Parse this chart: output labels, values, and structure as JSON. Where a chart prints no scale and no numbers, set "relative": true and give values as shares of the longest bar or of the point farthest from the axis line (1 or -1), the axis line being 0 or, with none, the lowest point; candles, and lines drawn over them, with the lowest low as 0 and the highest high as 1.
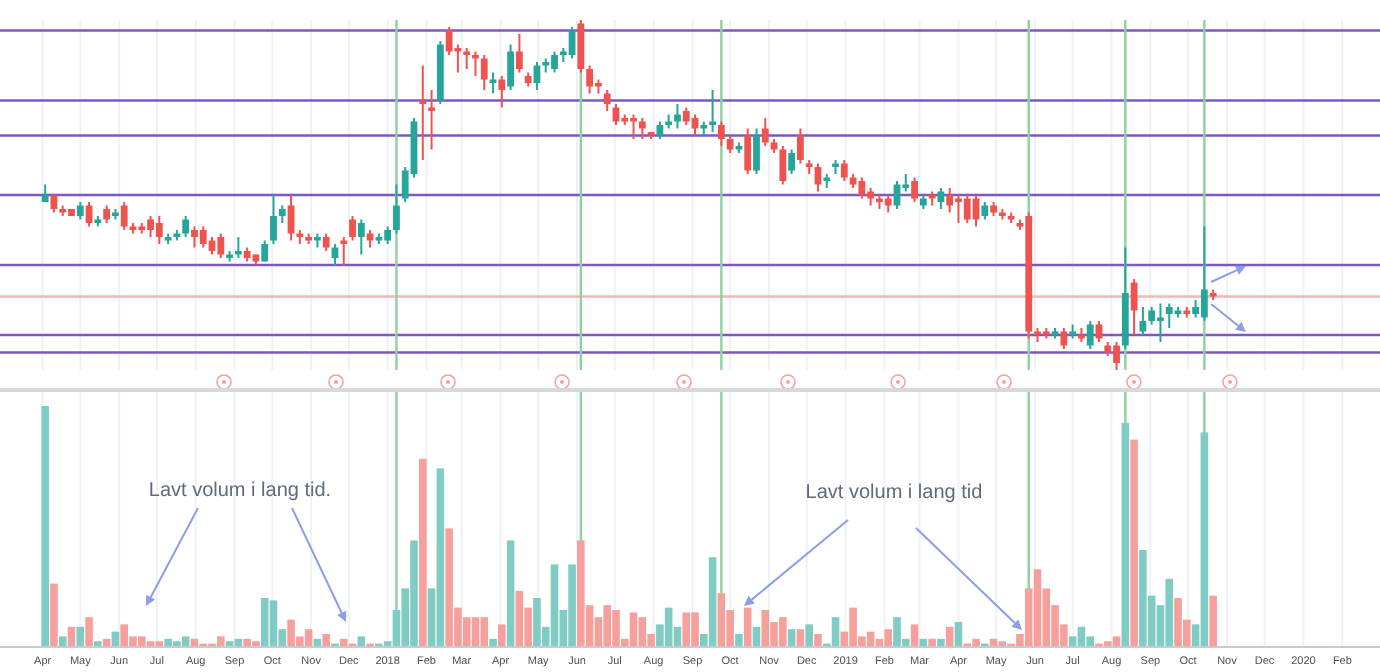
{
  "chart_data": [
    {
      "type": "candlestick",
      "relative": true,
      "tick_labels": false,
      "grid": "x",
      "x": [
        "2017-04-03",
        "2017-04-10",
        "2017-04-17",
        "2017-04-24",
        "2017-05-01",
        "2017-05-08",
        "2017-05-15",
        "2017-05-22",
        "2017-05-29",
        "2017-06-05",
        "2017-06-12",
        "2017-06-19",
        "2017-06-26",
        "2017-07-03",
        "2017-07-10",
        "2017-07-17",
        "2017-07-24",
        "2017-07-31",
        "2017-08-07",
        "2017-08-14",
        "2017-08-21",
        "2017-08-28",
        "2017-09-04",
        "2017-09-11",
        "2017-09-18",
        "2017-09-25",
        "2017-10-02",
        "2017-10-09",
        "2017-10-16",
        "2017-10-23",
        "2017-10-30",
        "2017-11-06",
        "2017-11-13",
        "2017-11-20",
        "2017-11-27",
        "2017-12-04",
        "2017-12-11",
        "2017-12-18",
        "2017-12-25",
        "2018-01-01",
        "2018-01-08",
        "2018-01-15",
        "2018-01-22",
        "2018-01-29",
        "2018-02-05",
        "2018-02-12",
        "2018-02-19",
        "2018-02-26",
        "2018-03-05",
        "2018-03-12",
        "2018-03-19",
        "2018-03-26",
        "2018-04-02",
        "2018-04-09",
        "2018-04-16",
        "2018-04-23",
        "2018-04-30",
        "2018-05-07",
        "2018-05-14",
        "2018-05-21",
        "2018-05-28",
        "2018-06-04",
        "2018-06-11",
        "2018-06-18",
        "2018-06-25",
        "2018-07-02",
        "2018-07-09",
        "2018-07-16",
        "2018-07-23",
        "2018-07-30",
        "2018-08-06",
        "2018-08-13",
        "2018-08-20",
        "2018-08-27",
        "2018-09-03",
        "2018-09-10",
        "2018-09-17",
        "2018-09-24",
        "2018-10-01",
        "2018-10-08",
        "2018-10-15",
        "2018-10-22",
        "2018-10-29",
        "2018-11-05",
        "2018-11-12",
        "2018-11-19",
        "2018-11-26",
        "2018-12-03",
        "2018-12-10",
        "2018-12-17",
        "2018-12-24",
        "2018-12-31",
        "2019-01-07",
        "2019-01-14",
        "2019-01-21",
        "2019-01-28",
        "2019-02-04",
        "2019-02-11",
        "2019-02-18",
        "2019-02-25",
        "2019-03-04",
        "2019-03-11",
        "2019-03-18",
        "2019-03-25",
        "2019-04-01",
        "2019-04-08",
        "2019-04-15",
        "2019-04-22",
        "2019-04-29",
        "2019-05-06",
        "2019-05-13",
        "2019-05-20",
        "2019-05-27",
        "2019-06-03",
        "2019-06-10",
        "2019-06-17",
        "2019-06-24",
        "2019-07-01",
        "2019-07-08",
        "2019-07-15",
        "2019-07-22",
        "2019-07-29",
        "2019-08-05",
        "2019-08-12",
        "2019-08-19",
        "2019-08-26",
        "2019-09-02",
        "2019-09-09",
        "2019-09-16",
        "2019-09-23",
        "2019-09-30",
        "2019-10-07",
        "2019-10-14",
        "2019-10-21"
      ],
      "ohlc": [
        [
          0.48,
          0.53,
          0.48,
          0.5
        ],
        [
          0.5,
          0.5,
          0.45,
          0.46
        ],
        [
          0.46,
          0.47,
          0.44,
          0.45
        ],
        [
          0.46,
          0.46,
          0.44,
          0.44
        ],
        [
          0.44,
          0.48,
          0.43,
          0.47
        ],
        [
          0.47,
          0.48,
          0.41,
          0.42
        ],
        [
          0.42,
          0.44,
          0.41,
          0.43
        ],
        [
          0.46,
          0.47,
          0.42,
          0.43
        ],
        [
          0.44,
          0.46,
          0.43,
          0.45
        ],
        [
          0.47,
          0.48,
          0.4,
          0.41
        ],
        [
          0.41,
          0.42,
          0.39,
          0.4
        ],
        [
          0.41,
          0.42,
          0.39,
          0.4
        ],
        [
          0.43,
          0.44,
          0.38,
          0.4
        ],
        [
          0.42,
          0.44,
          0.36,
          0.38
        ],
        [
          0.37,
          0.39,
          0.36,
          0.38
        ],
        [
          0.38,
          0.4,
          0.37,
          0.39
        ],
        [
          0.39,
          0.44,
          0.38,
          0.43
        ],
        [
          0.4,
          0.41,
          0.35,
          0.38
        ],
        [
          0.4,
          0.41,
          0.35,
          0.36
        ],
        [
          0.37,
          0.38,
          0.33,
          0.34
        ],
        [
          0.38,
          0.39,
          0.32,
          0.33
        ],
        [
          0.32,
          0.34,
          0.31,
          0.33
        ],
        [
          0.33,
          0.38,
          0.32,
          0.34
        ],
        [
          0.34,
          0.35,
          0.31,
          0.32
        ],
        [
          0.33,
          0.33,
          0.3,
          0.31
        ],
        [
          0.31,
          0.37,
          0.31,
          0.36
        ],
        [
          0.37,
          0.5,
          0.36,
          0.44
        ],
        [
          0.44,
          0.47,
          0.42,
          0.46
        ],
        [
          0.47,
          0.5,
          0.37,
          0.39
        ],
        [
          0.39,
          0.4,
          0.36,
          0.38
        ],
        [
          0.38,
          0.39,
          0.36,
          0.37
        ],
        [
          0.37,
          0.39,
          0.35,
          0.38
        ],
        [
          0.38,
          0.39,
          0.34,
          0.35
        ],
        [
          0.32,
          0.36,
          0.3,
          0.35
        ],
        [
          0.37,
          0.38,
          0.3,
          0.36
        ],
        [
          0.43,
          0.44,
          0.37,
          0.38
        ],
        [
          0.38,
          0.43,
          0.33,
          0.42
        ],
        [
          0.39,
          0.4,
          0.35,
          0.37
        ],
        [
          0.37,
          0.39,
          0.36,
          0.38
        ],
        [
          0.37,
          0.41,
          0.36,
          0.4
        ],
        [
          0.4,
          0.53,
          0.39,
          0.47
        ],
        [
          0.49,
          0.58,
          0.48,
          0.57
        ],
        [
          0.56,
          0.72,
          0.55,
          0.71
        ],
        [
          0.77,
          0.87,
          0.6,
          0.76
        ],
        [
          0.75,
          0.8,
          0.63,
          0.74
        ],
        [
          0.77,
          0.94,
          0.76,
          0.93
        ],
        [
          0.97,
          0.98,
          0.9,
          0.91
        ],
        [
          0.92,
          0.93,
          0.85,
          0.91
        ],
        [
          0.91,
          0.92,
          0.86,
          0.9
        ],
        [
          0.9,
          0.91,
          0.84,
          0.89
        ],
        [
          0.89,
          0.9,
          0.8,
          0.83
        ],
        [
          0.82,
          0.85,
          0.79,
          0.83
        ],
        [
          0.83,
          0.84,
          0.75,
          0.8
        ],
        [
          0.81,
          0.93,
          0.8,
          0.91
        ],
        [
          0.91,
          0.96,
          0.85,
          0.86
        ],
        [
          0.84,
          0.85,
          0.81,
          0.82
        ],
        [
          0.82,
          0.88,
          0.8,
          0.87
        ],
        [
          0.87,
          0.89,
          0.85,
          0.88
        ],
        [
          0.86,
          0.91,
          0.85,
          0.9
        ],
        [
          0.9,
          0.92,
          0.88,
          0.91
        ],
        [
          0.9,
          0.98,
          0.89,
          0.97
        ],
        [
          0.99,
          1,
          0.85,
          0.86
        ],
        [
          0.86,
          0.87,
          0.79,
          0.81
        ],
        [
          0.82,
          0.83,
          0.79,
          0.81
        ],
        [
          0.79,
          0.8,
          0.74,
          0.76
        ],
        [
          0.75,
          0.76,
          0.7,
          0.71
        ],
        [
          0.72,
          0.73,
          0.7,
          0.71
        ],
        [
          0.72,
          0.73,
          0.66,
          0.71
        ],
        [
          0.71,
          0.72,
          0.66,
          0.69
        ],
        [
          0.68,
          0.68,
          0.66,
          0.67
        ],
        [
          0.67,
          0.71,
          0.66,
          0.7
        ],
        [
          0.7,
          0.73,
          0.69,
          0.71
        ],
        [
          0.71,
          0.76,
          0.69,
          0.73
        ],
        [
          0.74,
          0.75,
          0.7,
          0.71
        ],
        [
          0.72,
          0.73,
          0.67,
          0.69
        ],
        [
          0.69,
          0.71,
          0.67,
          0.7
        ],
        [
          0.7,
          0.8,
          0.68,
          0.71
        ],
        [
          0.7,
          0.71,
          0.64,
          0.66
        ],
        [
          0.66,
          0.67,
          0.62,
          0.63
        ],
        [
          0.63,
          0.65,
          0.62,
          0.64
        ],
        [
          0.67,
          0.69,
          0.56,
          0.57
        ],
        [
          0.57,
          0.69,
          0.56,
          0.67
        ],
        [
          0.69,
          0.72,
          0.64,
          0.65
        ],
        [
          0.65,
          0.66,
          0.62,
          0.63
        ],
        [
          0.63,
          0.64,
          0.53,
          0.54
        ],
        [
          0.57,
          0.63,
          0.56,
          0.62
        ],
        [
          0.67,
          0.69,
          0.59,
          0.6
        ],
        [
          0.59,
          0.6,
          0.56,
          0.58
        ],
        [
          0.58,
          0.59,
          0.51,
          0.53
        ],
        [
          0.54,
          0.56,
          0.52,
          0.55
        ],
        [
          0.58,
          0.6,
          0.56,
          0.59
        ],
        [
          0.59,
          0.6,
          0.54,
          0.55
        ],
        [
          0.55,
          0.56,
          0.52,
          0.53
        ],
        [
          0.54,
          0.55,
          0.49,
          0.5
        ],
        [
          0.51,
          0.52,
          0.47,
          0.49
        ],
        [
          0.49,
          0.5,
          0.46,
          0.48
        ],
        [
          0.49,
          0.5,
          0.45,
          0.47
        ],
        [
          0.47,
          0.54,
          0.46,
          0.53
        ],
        [
          0.52,
          0.56,
          0.51,
          0.53
        ],
        [
          0.54,
          0.55,
          0.48,
          0.49
        ],
        [
          0.47,
          0.5,
          0.46,
          0.49
        ],
        [
          0.5,
          0.51,
          0.47,
          0.49
        ],
        [
          0.48,
          0.52,
          0.46,
          0.51
        ],
        [
          0.5,
          0.52,
          0.45,
          0.47
        ],
        [
          0.49,
          0.5,
          0.42,
          0.48
        ],
        [
          0.49,
          0.5,
          0.42,
          0.43
        ],
        [
          0.49,
          0.5,
          0.41,
          0.43
        ],
        [
          0.44,
          0.48,
          0.43,
          0.47
        ],
        [
          0.47,
          0.48,
          0.44,
          0.45
        ],
        [
          0.45,
          0.46,
          0.43,
          0.44
        ],
        [
          0.44,
          0.45,
          0.42,
          0.43
        ],
        [
          0.42,
          0.43,
          0.4,
          0.41
        ],
        [
          0.44,
          0.45,
          0.09,
          0.11
        ],
        [
          0.11,
          0.12,
          0.08,
          0.1
        ],
        [
          0.11,
          0.12,
          0.09,
          0.1
        ],
        [
          0.1,
          0.12,
          0.09,
          0.11
        ],
        [
          0.11,
          0.12,
          0.06,
          0.07
        ],
        [
          0.1,
          0.13,
          0.09,
          0.11
        ],
        [
          0.1,
          0.12,
          0.08,
          0.09
        ],
        [
          0.07,
          0.14,
          0.06,
          0.13
        ],
        [
          0.13,
          0.14,
          0.08,
          0.09
        ],
        [
          0.07,
          0.08,
          0.04,
          0.05
        ],
        [
          0.07,
          0.08,
          0,
          0.02
        ],
        [
          0.07,
          0.35,
          0.06,
          0.22
        ],
        [
          0.25,
          0.26,
          0.1,
          0.17
        ],
        [
          0.11,
          0.18,
          0.1,
          0.14
        ],
        [
          0.14,
          0.18,
          0.13,
          0.17
        ],
        [
          0.14,
          0.19,
          0.08,
          0.15
        ],
        [
          0.16,
          0.19,
          0.12,
          0.18
        ],
        [
          0.16,
          0.18,
          0.15,
          0.17
        ],
        [
          0.17,
          0.18,
          0.15,
          0.16
        ],
        [
          0.16,
          0.2,
          0.15,
          0.18
        ],
        [
          0.15,
          0.41,
          0.14,
          0.23
        ],
        [
          0.22,
          0.23,
          0.2,
          0.21
        ]
      ],
      "colors": [
        "#26a69a",
        "#ef5350",
        "#ef5350",
        "#ef5350",
        "#26a69a",
        "#ef5350",
        "#26a69a",
        "#ef5350",
        "#26a69a",
        "#ef5350",
        "#ef5350",
        "#ef5350",
        "#ef5350",
        "#ef5350",
        "#26a69a",
        "#26a69a",
        "#26a69a",
        "#ef5350",
        "#ef5350",
        "#ef5350",
        "#ef5350",
        "#26a69a",
        "#26a69a",
        "#ef5350",
        "#ef5350",
        "#26a69a",
        "#26a69a",
        "#26a69a",
        "#ef5350",
        "#ef5350",
        "#ef5350",
        "#26a69a",
        "#ef5350",
        "#26a69a",
        "#ef5350",
        "#ef5350",
        "#26a69a",
        "#ef5350",
        "#26a69a",
        "#26a69a",
        "#26a69a",
        "#26a69a",
        "#26a69a",
        "#ef5350",
        "#ef5350",
        "#26a69a",
        "#ef5350",
        "#ef5350",
        "#ef5350",
        "#ef5350",
        "#ef5350",
        "#26a69a",
        "#ef5350",
        "#26a69a",
        "#ef5350",
        "#ef5350",
        "#26a69a",
        "#26a69a",
        "#26a69a",
        "#26a69a",
        "#26a69a",
        "#ef5350",
        "#ef5350",
        "#ef5350",
        "#ef5350",
        "#ef5350",
        "#ef5350",
        "#ef5350",
        "#ef5350",
        "#ef5350",
        "#26a69a",
        "#26a69a",
        "#26a69a",
        "#ef5350",
        "#ef5350",
        "#26a69a",
        "#26a69a",
        "#ef5350",
        "#ef5350",
        "#26a69a",
        "#ef5350",
        "#26a69a",
        "#ef5350",
        "#ef5350",
        "#ef5350",
        "#26a69a",
        "#ef5350",
        "#ef5350",
        "#ef5350",
        "#26a69a",
        "#26a69a",
        "#ef5350",
        "#ef5350",
        "#ef5350",
        "#ef5350",
        "#ef5350",
        "#ef5350",
        "#26a69a",
        "#26a69a",
        "#ef5350",
        "#26a69a",
        "#ef5350",
        "#26a69a",
        "#ef5350",
        "#ef5350",
        "#ef5350",
        "#ef5350",
        "#26a69a",
        "#ef5350",
        "#ef5350",
        "#ef5350",
        "#ef5350",
        "#ef5350",
        "#ef5350",
        "#ef5350",
        "#26a69a",
        "#ef5350",
        "#26a69a",
        "#ef5350",
        "#26a69a",
        "#ef5350",
        "#ef5350",
        "#ef5350",
        "#26a69a",
        "#ef5350",
        "#26a69a",
        "#26a69a",
        "#26a69a",
        "#26a69a",
        "#26a69a",
        "#ef5350",
        "#26a69a",
        "#26a69a",
        "#ef5350"
      ],
      "xlim": [
        "2017-02-26",
        "2020-03-02"
      ],
      "xticks": [
        {
          "value": "2017-04",
          "label": null
        },
        {
          "value": "2017-05",
          "label": null
        },
        {
          "value": "2017-06",
          "label": null
        },
        {
          "value": "2017-07",
          "label": null
        },
        {
          "value": "2017-08",
          "label": null
        },
        {
          "value": "2017-09",
          "label": null
        },
        {
          "value": "2017-10",
          "label": null
        },
        {
          "value": "2017-11",
          "label": null
        },
        {
          "value": "2017-12",
          "label": null
        },
        {
          "value": "2018-01",
          "label": null
        },
        {
          "value": "2018-02",
          "label": null
        },
        {
          "value": "2018-03",
          "label": null
        },
        {
          "value": "2018-04",
          "label": null
        },
        {
          "value": "2018-05",
          "label": null
        },
        {
          "value": "2018-06",
          "label": null
        },
        {
          "value": "2018-07",
          "label": null
        },
        {
          "value": "2018-08",
          "label": null
        },
        {
          "value": "2018-09",
          "label": null
        },
        {
          "value": "2018-10",
          "label": null
        },
        {
          "value": "2018-11",
          "label": null
        },
        {
          "value": "2018-12",
          "label": null
        },
        {
          "value": "2019-01",
          "label": null
        },
        {
          "value": "2019-02",
          "label": null
        },
        {
          "value": "2019-03",
          "label": null
        },
        {
          "value": "2019-04",
          "label": null
        },
        {
          "value": "2019-05",
          "label": null
        },
        {
          "value": "2019-06",
          "label": null
        },
        {
          "value": "2019-07",
          "label": null
        },
        {
          "value": "2019-08",
          "label": null
        },
        {
          "value": "2019-09",
          "label": null
        },
        {
          "value": "2019-10",
          "label": null
        },
        {
          "value": "2019-11",
          "label": null
        },
        {
          "value": "2019-12",
          "label": null
        },
        {
          "value": "2020-01",
          "label": null
        },
        {
          "value": "2020-02",
          "label": null
        }
      ],
      "ref_lines": [
        {
          "axis": "y",
          "value": 0.97,
          "color": "#7e57c2"
        },
        {
          "axis": "y",
          "value": 0.77,
          "color": "#7e57c2"
        },
        {
          "axis": "y",
          "value": 0.67,
          "color": "#7e57c2"
        },
        {
          "axis": "y",
          "value": 0.5,
          "color": "#7e57c2"
        },
        {
          "axis": "y",
          "value": 0.3,
          "color": "#7e57c2"
        },
        {
          "axis": "y",
          "value": 0.1,
          "color": "#7e57c2"
        },
        {
          "axis": "y",
          "value": 0.05,
          "color": "#7e57c2"
        },
        {
          "axis": "y",
          "value": 0.21,
          "color": "#f8b4b2"
        },
        {
          "axis": "x",
          "value": "2018-01-08",
          "color": "#8fd19e"
        },
        {
          "axis": "x",
          "value": "2018-06-04",
          "color": "#8fd19e"
        },
        {
          "axis": "x",
          "value": "2018-09-24",
          "color": "#8fd19e"
        },
        {
          "axis": "x",
          "value": "2019-05-27",
          "color": "#8fd19e"
        },
        {
          "axis": "x",
          "value": "2019-08-12",
          "color": "#8fd19e"
        },
        {
          "axis": "x",
          "value": "2019-10-14",
          "color": "#8fd19e"
        }
      ]
    },
    {
      "type": "bar",
      "relative": true,
      "grid": "x",
      "x": [
        "2017-04-03",
        "2017-04-10",
        "2017-04-17",
        "2017-04-24",
        "2017-05-01",
        "2017-05-08",
        "2017-05-15",
        "2017-05-22",
        "2017-05-29",
        "2017-06-05",
        "2017-06-12",
        "2017-06-19",
        "2017-06-26",
        "2017-07-03",
        "2017-07-10",
        "2017-07-17",
        "2017-07-24",
        "2017-07-31",
        "2017-08-07",
        "2017-08-14",
        "2017-08-21",
        "2017-08-28",
        "2017-09-04",
        "2017-09-11",
        "2017-09-18",
        "2017-09-25",
        "2017-10-02",
        "2017-10-09",
        "2017-10-16",
        "2017-10-23",
        "2017-10-30",
        "2017-11-06",
        "2017-11-13",
        "2017-11-20",
        "2017-11-27",
        "2017-12-04",
        "2017-12-11",
        "2017-12-18",
        "2017-12-25",
        "2018-01-01",
        "2018-01-08",
        "2018-01-15",
        "2018-01-22",
        "2018-01-29",
        "2018-02-05",
        "2018-02-12",
        "2018-02-19",
        "2018-02-26",
        "2018-03-05",
        "2018-03-12",
        "2018-03-19",
        "2018-03-26",
        "2018-04-02",
        "2018-04-09",
        "2018-04-16",
        "2018-04-23",
        "2018-04-30",
        "2018-05-07",
        "2018-05-14",
        "2018-05-21",
        "2018-05-28",
        "2018-06-04",
        "2018-06-11",
        "2018-06-18",
        "2018-06-25",
        "2018-07-02",
        "2018-07-09",
        "2018-07-16",
        "2018-07-23",
        "2018-07-30",
        "2018-08-06",
        "2018-08-13",
        "2018-08-20",
        "2018-08-27",
        "2018-09-03",
        "2018-09-10",
        "2018-09-17",
        "2018-09-24",
        "2018-10-01",
        "2018-10-08",
        "2018-10-15",
        "2018-10-22",
        "2018-10-29",
        "2018-11-05",
        "2018-11-12",
        "2018-11-19",
        "2018-11-26",
        "2018-12-03",
        "2018-12-10",
        "2018-12-17",
        "2018-12-24",
        "2018-12-31",
        "2019-01-07",
        "2019-01-14",
        "2019-01-21",
        "2019-01-28",
        "2019-02-04",
        "2019-02-11",
        "2019-02-18",
        "2019-02-25",
        "2019-03-04",
        "2019-03-11",
        "2019-03-18",
        "2019-03-25",
        "2019-04-01",
        "2019-04-08",
        "2019-04-15",
        "2019-04-22",
        "2019-04-29",
        "2019-05-06",
        "2019-05-13",
        "2019-05-20",
        "2019-05-27",
        "2019-06-03",
        "2019-06-10",
        "2019-06-17",
        "2019-06-24",
        "2019-07-01",
        "2019-07-08",
        "2019-07-15",
        "2019-07-22",
        "2019-07-29",
        "2019-08-05",
        "2019-08-12",
        "2019-08-19",
        "2019-08-26",
        "2019-09-02",
        "2019-09-09",
        "2019-09-16",
        "2019-09-23",
        "2019-09-30",
        "2019-10-07",
        "2019-10-14",
        "2019-10-21"
      ],
      "values": [
        1,
        0.26,
        0.04,
        0.08,
        0.08,
        0.12,
        0.02,
        0.03,
        0.06,
        0.09,
        0.04,
        0.04,
        0.02,
        0.02,
        0.03,
        0.02,
        0.04,
        0.03,
        0.01,
        0.01,
        0.04,
        0.02,
        0.03,
        0.03,
        0.02,
        0.2,
        0.19,
        0.07,
        0.11,
        0.04,
        0.07,
        0.03,
        0.05,
        0.01,
        0.03,
        0.01,
        0.04,
        0.01,
        0.01,
        0.02,
        0.15,
        0.24,
        0.44,
        0.78,
        0.24,
        0.74,
        0.49,
        0.16,
        0.12,
        0.12,
        0.12,
        0.03,
        0.09,
        0.44,
        0.23,
        0.16,
        0.2,
        0.08,
        0.34,
        0.15,
        0.34,
        0.44,
        0.17,
        0.12,
        0.17,
        0.15,
        0.03,
        0.14,
        0.12,
        0.05,
        0.09,
        0.16,
        0.08,
        0.14,
        0.14,
        0.05,
        0.37,
        0.22,
        0.15,
        0.05,
        0.16,
        0.08,
        0.15,
        0.1,
        0.12,
        0.07,
        0.07,
        0.09,
        0.05,
        0.01,
        0.12,
        0.06,
        0.16,
        0.04,
        0.06,
        0.03,
        0.07,
        0.12,
        0.03,
        0.09,
        0.03,
        0.03,
        0.03,
        0.08,
        0.1,
        0.01,
        0.03,
        0.01,
        0.03,
        0.02,
        0.01,
        0.05,
        0.24,
        0.32,
        0.24,
        0.17,
        0.09,
        0.04,
        0.08,
        0.04,
        0.01,
        0.02,
        0.04,
        0.93,
        0.86,
        0.4,
        0.21,
        0.17,
        0.28,
        0.2,
        0.11,
        0.09,
        0.89,
        0.21
      ],
      "colors": [
        "#80cbc4",
        "#f6a09e",
        "#80cbc4",
        "#f6a09e",
        "#80cbc4",
        "#f6a09e",
        "#80cbc4",
        "#f6a09e",
        "#80cbc4",
        "#f6a09e",
        "#f6a09e",
        "#f6a09e",
        "#f6a09e",
        "#f6a09e",
        "#80cbc4",
        "#80cbc4",
        "#80cbc4",
        "#f6a09e",
        "#f6a09e",
        "#f6a09e",
        "#f6a09e",
        "#80cbc4",
        "#80cbc4",
        "#f6a09e",
        "#f6a09e",
        "#80cbc4",
        "#80cbc4",
        "#80cbc4",
        "#f6a09e",
        "#f6a09e",
        "#f6a09e",
        "#80cbc4",
        "#f6a09e",
        "#80cbc4",
        "#f6a09e",
        "#f6a09e",
        "#80cbc4",
        "#f6a09e",
        "#80cbc4",
        "#80cbc4",
        "#80cbc4",
        "#80cbc4",
        "#80cbc4",
        "#f6a09e",
        "#80cbc4",
        "#80cbc4",
        "#f6a09e",
        "#f6a09e",
        "#f6a09e",
        "#f6a09e",
        "#f6a09e",
        "#80cbc4",
        "#f6a09e",
        "#80cbc4",
        "#f6a09e",
        "#f6a09e",
        "#80cbc4",
        "#80cbc4",
        "#80cbc4",
        "#80cbc4",
        "#80cbc4",
        "#f6a09e",
        "#f6a09e",
        "#f6a09e",
        "#f6a09e",
        "#f6a09e",
        "#f6a09e",
        "#f6a09e",
        "#f6a09e",
        "#f6a09e",
        "#80cbc4",
        "#80cbc4",
        "#80cbc4",
        "#f6a09e",
        "#f6a09e",
        "#80cbc4",
        "#80cbc4",
        "#f6a09e",
        "#f6a09e",
        "#80cbc4",
        "#f6a09e",
        "#80cbc4",
        "#f6a09e",
        "#f6a09e",
        "#f6a09e",
        "#80cbc4",
        "#f6a09e",
        "#80cbc4",
        "#f6a09e",
        "#80cbc4",
        "#80cbc4",
        "#f6a09e",
        "#f6a09e",
        "#f6a09e",
        "#f6a09e",
        "#f6a09e",
        "#f6a09e",
        "#80cbc4",
        "#80cbc4",
        "#f6a09e",
        "#80cbc4",
        "#f6a09e",
        "#80cbc4",
        "#f6a09e",
        "#80cbc4",
        "#f6a09e",
        "#f6a09e",
        "#80cbc4",
        "#f6a09e",
        "#f6a09e",
        "#f6a09e",
        "#f6a09e",
        "#f6a09e",
        "#f6a09e",
        "#f6a09e",
        "#f6a09e",
        "#f6a09e",
        "#80cbc4",
        "#80cbc4",
        "#80cbc4",
        "#f6a09e",
        "#f6a09e",
        "#f6a09e",
        "#80cbc4",
        "#f6a09e",
        "#80cbc4",
        "#80cbc4",
        "#80cbc4",
        "#80cbc4",
        "#f6a09e",
        "#f6a09e",
        "#80cbc4",
        "#80cbc4",
        "#f6a09e"
      ],
      "xlim": [
        "2017-02-26",
        "2020-03-02"
      ],
      "xticks": [
        {
          "value": "2017-04",
          "label": "Apr"
        },
        {
          "value": "2017-05",
          "label": "May"
        },
        {
          "value": "2017-06",
          "label": "Jun"
        },
        {
          "value": "2017-07",
          "label": "Jul"
        },
        {
          "value": "2017-08",
          "label": "Aug"
        },
        {
          "value": "2017-09",
          "label": "Sep"
        },
        {
          "value": "2017-10",
          "label": "Oct"
        },
        {
          "value": "2017-11",
          "label": "Nov"
        },
        {
          "value": "2017-12",
          "label": "Dec"
        },
        {
          "value": "2018-01",
          "label": "2018"
        },
        {
          "value": "2018-02",
          "label": "Feb"
        },
        {
          "value": "2018-03",
          "label": "Mar"
        },
        {
          "value": "2018-04",
          "label": "Apr"
        },
        {
          "value": "2018-05",
          "label": "May"
        },
        {
          "value": "2018-06",
          "label": "Jun"
        },
        {
          "value": "2018-07",
          "label": "Jul"
        },
        {
          "value": "2018-08",
          "label": "Aug"
        },
        {
          "value": "2018-09",
          "label": "Sep"
        },
        {
          "value": "2018-10",
          "label": "Oct"
        },
        {
          "value": "2018-11",
          "label": "Nov"
        },
        {
          "value": "2018-12",
          "label": "Dec"
        },
        {
          "value": "2019-01",
          "label": "2019"
        },
        {
          "value": "2019-02",
          "label": "Feb"
        },
        {
          "value": "2019-03",
          "label": "Mar"
        },
        {
          "value": "2019-04",
          "label": "Apr"
        },
        {
          "value": "2019-05",
          "label": "May"
        },
        {
          "value": "2019-06",
          "label": "Jun"
        },
        {
          "value": "2019-07",
          "label": "Jul"
        },
        {
          "value": "2019-08",
          "label": "Aug"
        },
        {
          "value": "2019-09",
          "label": "Sep"
        },
        {
          "value": "2019-10",
          "label": "Oct"
        },
        {
          "value": "2019-11",
          "label": "Nov"
        },
        {
          "value": "2019-12",
          "label": "Dec"
        },
        {
          "value": "2020-01",
          "label": "2020"
        },
        {
          "value": "2020-02",
          "label": "Feb"
        }
      ],
      "ref_lines": [
        {
          "axis": "x",
          "value": "2018-01-08",
          "color": "#8fd19e"
        },
        {
          "axis": "x",
          "value": "2018-06-04",
          "color": "#8fd19e"
        },
        {
          "axis": "x",
          "value": "2018-09-24",
          "color": "#8fd19e"
        },
        {
          "axis": "x",
          "value": "2019-05-27",
          "color": "#8fd19e"
        },
        {
          "axis": "x",
          "value": "2019-08-12",
          "color": "#8fd19e"
        },
        {
          "axis": "x",
          "value": "2019-10-14",
          "color": "#8fd19e"
        }
      ],
      "annotations": [
        "Lavt volum i lang tid.",
        "Lavt volum i lang tid"
      ]
    }
  ]
}
